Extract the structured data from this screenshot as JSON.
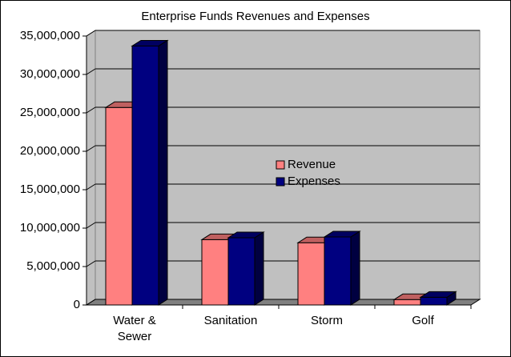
{
  "chart_data": {
    "type": "bar3d",
    "title": "Enterprise Funds Revenues and Expenses",
    "categories": [
      "Water & Sewer",
      "Sanitation",
      "Storm",
      "Golf"
    ],
    "series": [
      {
        "name": "Revenue",
        "color": "#ff8080",
        "values": [
          25700000,
          8500000,
          8100000,
          700000
        ]
      },
      {
        "name": "Expenses",
        "color": "#000080",
        "values": [
          33700000,
          8750000,
          8850000,
          1000000
        ]
      }
    ],
    "ylim": [
      0,
      35000000
    ],
    "yticks": [
      0,
      {
        "value": 5000000,
        "label": "5,000,000"
      },
      {
        "value": 10000000,
        "label": "10,000,000"
      },
      {
        "value": 15000000,
        "label": "15,000,000"
      },
      {
        "value": 20000000,
        "label": "20,000,000"
      },
      {
        "value": 25000000,
        "label": "25,000,000"
      },
      {
        "value": 30000000,
        "label": "30,000,000"
      },
      {
        "value": 35000000,
        "label": "35,000,000"
      }
    ],
    "grid": true,
    "legend": "center"
  }
}
